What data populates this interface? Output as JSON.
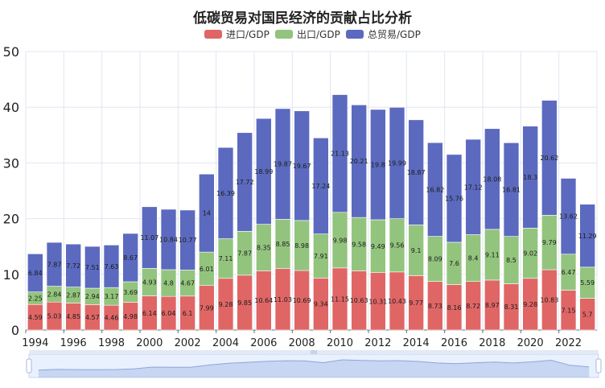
{
  "chart_data": {
    "type": "bar",
    "stacked": true,
    "title": "低碳贸易对国民经济的贡献占比分析",
    "xlabel": "",
    "ylabel": "",
    "ylim": [
      0,
      50
    ],
    "y_ticks": [
      0,
      10,
      20,
      30,
      40,
      50
    ],
    "grid": true,
    "legend_position": "top-center",
    "categories": [
      "1994",
      "1995",
      "1996",
      "1997",
      "1998",
      "1999",
      "2000",
      "2001",
      "2002",
      "2003",
      "2004",
      "2005",
      "2006",
      "2007",
      "2008",
      "2009",
      "2010",
      "2011",
      "2012",
      "2013",
      "2014",
      "2015",
      "2016",
      "2017",
      "2018",
      "2019",
      "2020",
      "2021",
      "2022",
      "2023"
    ],
    "x_tick_labels": [
      "1994",
      "1996",
      "1998",
      "2000",
      "2002",
      "2004",
      "2006",
      "2008",
      "2010",
      "2012",
      "2014",
      "2016",
      "2018",
      "2020",
      "2022"
    ],
    "series": [
      {
        "name": "进口/GDP",
        "color": "#e06666",
        "values": [
          4.59,
          5.03,
          4.85,
          4.57,
          4.46,
          4.98,
          6.14,
          6.04,
          6.1,
          7.99,
          9.28,
          9.85,
          10.64,
          11.03,
          10.69,
          9.34,
          11.15,
          10.63,
          10.31,
          10.43,
          9.77,
          8.73,
          8.16,
          8.72,
          8.97,
          8.31,
          9.28,
          10.83,
          7.15,
          5.7
        ]
      },
      {
        "name": "出口/GDP",
        "color": "#93c47d",
        "values": [
          2.25,
          2.84,
          2.87,
          2.94,
          3.17,
          3.69,
          4.93,
          4.8,
          4.67,
          6.01,
          7.11,
          7.87,
          8.35,
          8.85,
          8.98,
          7.91,
          9.98,
          9.58,
          9.49,
          9.56,
          9.1,
          8.09,
          7.6,
          8.4,
          9.11,
          8.5,
          9.02,
          9.79,
          6.47,
          5.59
        ]
      },
      {
        "name": "总贸易/GDP",
        "color": "#5b6abf",
        "values": [
          6.84,
          7.87,
          7.72,
          7.51,
          7.63,
          8.67,
          11.07,
          10.84,
          10.77,
          14,
          16.39,
          17.72,
          18.99,
          19.87,
          19.67,
          17.24,
          21.13,
          20.21,
          19.8,
          19.99,
          18.87,
          16.82,
          15.76,
          17.12,
          18.08,
          16.81,
          18.3,
          20.62,
          13.62,
          11.29
        ]
      }
    ]
  }
}
